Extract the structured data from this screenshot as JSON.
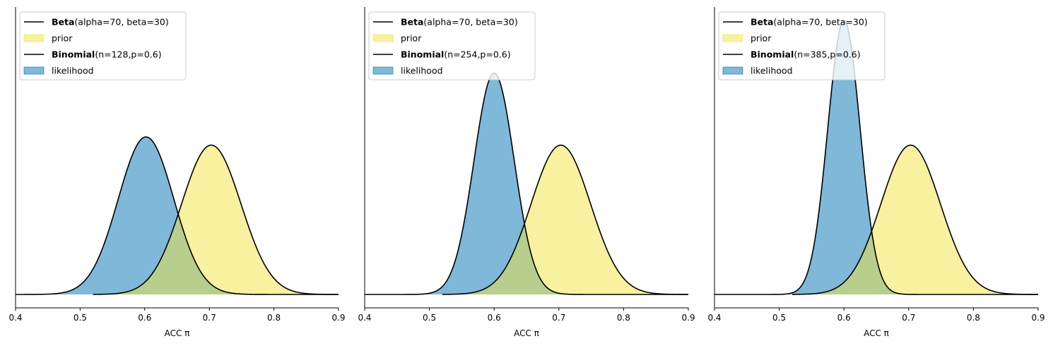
{
  "colors": {
    "prior_fill": "#f0e442",
    "likelihood_fill": "#0072b2",
    "curve": "#000000",
    "legend_border": "#cccccc"
  },
  "chart_data": [
    {
      "type": "area",
      "xlabel": "ACC π",
      "xlim": [
        0.4,
        0.9
      ],
      "xticks": [
        "0.4",
        "0.5",
        "0.6",
        "0.7",
        "0.8",
        "0.9"
      ],
      "ylim": [
        0,
        1
      ],
      "y_ticks_shown": false,
      "legend_position": "upper-left",
      "series": [
        {
          "name": "Beta",
          "params": "(alpha=70, beta=30)",
          "role": "prior-curve",
          "dist": "beta",
          "mode": 0.703,
          "peak": 0.545,
          "sd": 0.046,
          "support": [
            0.52,
            0.9
          ]
        },
        {
          "name": "prior",
          "role": "prior-fill"
        },
        {
          "name": "Binomial",
          "params": "(n=128,p=0.6)",
          "role": "likelihood-curve",
          "dist": "binomial",
          "mode": 0.602,
          "peak": 0.575,
          "sd": 0.043,
          "support": [
            0.4,
            0.9
          ]
        },
        {
          "name": "likelihood",
          "role": "likelihood-fill"
        }
      ]
    },
    {
      "type": "area",
      "xlabel": "ACC π",
      "xlim": [
        0.4,
        0.9
      ],
      "xticks": [
        "0.4",
        "0.5",
        "0.6",
        "0.7",
        "0.8",
        "0.9"
      ],
      "ylim": [
        0,
        1
      ],
      "y_ticks_shown": false,
      "legend_position": "upper-left",
      "series": [
        {
          "name": "Beta",
          "params": "(alpha=70, beta=30)",
          "role": "prior-curve",
          "dist": "beta",
          "mode": 0.703,
          "peak": 0.545,
          "sd": 0.046,
          "support": [
            0.52,
            0.9
          ]
        },
        {
          "name": "prior",
          "role": "prior-fill"
        },
        {
          "name": "Binomial",
          "params": "(n=254,p=0.6)",
          "role": "likelihood-curve",
          "dist": "binomial",
          "mode": 0.6,
          "peak": 0.808,
          "sd": 0.031,
          "support": [
            0.4,
            0.9
          ]
        },
        {
          "name": "likelihood",
          "role": "likelihood-fill"
        }
      ]
    },
    {
      "type": "area",
      "xlabel": "ACC π",
      "xlim": [
        0.4,
        0.9
      ],
      "xticks": [
        "0.4",
        "0.5",
        "0.6",
        "0.7",
        "0.8",
        "0.9"
      ],
      "ylim": [
        0,
        1
      ],
      "y_ticks_shown": false,
      "legend_position": "upper-left",
      "series": [
        {
          "name": "Beta",
          "params": "(alpha=70, beta=30)",
          "role": "prior-curve",
          "dist": "beta",
          "mode": 0.703,
          "peak": 0.545,
          "sd": 0.046,
          "support": [
            0.52,
            0.9
          ]
        },
        {
          "name": "prior",
          "role": "prior-fill"
        },
        {
          "name": "Binomial",
          "params": "(n=385,p=0.6)",
          "role": "likelihood-curve",
          "dist": "binomial",
          "mode": 0.6,
          "peak": 1.0,
          "sd": 0.025,
          "support": [
            0.4,
            0.9
          ]
        },
        {
          "name": "likelihood",
          "role": "likelihood-fill"
        }
      ]
    }
  ]
}
